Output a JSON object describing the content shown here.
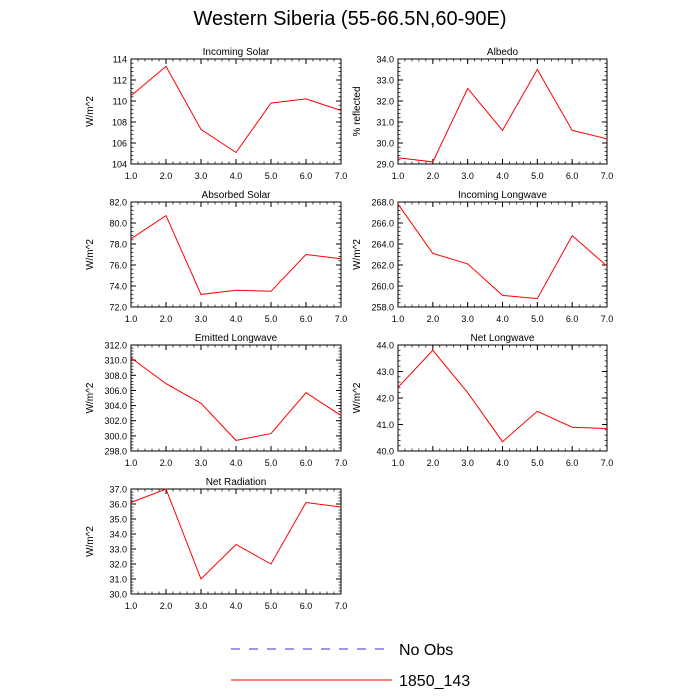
{
  "title": "Western Siberia (55-66.5N,60-90E)",
  "legend": {
    "placement": "bottom-center",
    "entries": [
      {
        "label": "No Obs",
        "color": "#3333cc",
        "style": "dashed"
      },
      {
        "label": "1850_143",
        "color": "#ff0000",
        "style": "solid"
      }
    ]
  },
  "chart_data": [
    {
      "type": "line",
      "title": "Incoming Solar",
      "xlabel": "",
      "ylabel": "W/m^2",
      "xlim": [
        1,
        7
      ],
      "ylim": [
        104,
        114
      ],
      "xticks": [
        1,
        2,
        3,
        4,
        5,
        6,
        7
      ],
      "xtick_labels": [
        "1.0",
        "2.0",
        "3.0",
        "4.0",
        "5.0",
        "6.0",
        "7.0"
      ],
      "yticks": [
        104,
        106,
        108,
        110,
        112,
        114
      ],
      "ytick_labels": [
        "104",
        "106",
        "108",
        "110",
        "112",
        "114"
      ],
      "series": [
        {
          "name": "1850_143",
          "color": "#ff0000",
          "x": [
            1,
            2,
            3,
            4,
            5,
            6,
            7
          ],
          "values": [
            110.5,
            113.3,
            107.3,
            105.1,
            109.8,
            110.2,
            109.1
          ]
        }
      ]
    },
    {
      "type": "line",
      "title": "Albedo",
      "xlabel": "",
      "ylabel": "% reflected",
      "xlim": [
        1,
        7
      ],
      "ylim": [
        29,
        34
      ],
      "xticks": [
        1,
        2,
        3,
        4,
        5,
        6,
        7
      ],
      "xtick_labels": [
        "1.0",
        "2.0",
        "3.0",
        "4.0",
        "5.0",
        "6.0",
        "7.0"
      ],
      "yticks": [
        29,
        30,
        31,
        32,
        33,
        34
      ],
      "ytick_labels": [
        "29.0",
        "30.0",
        "31.0",
        "32.0",
        "33.0",
        "34.0"
      ],
      "series": [
        {
          "name": "1850_143",
          "color": "#ff0000",
          "x": [
            1,
            2,
            3,
            4,
            5,
            6,
            7
          ],
          "values": [
            29.3,
            29.1,
            32.6,
            30.6,
            33.5,
            30.6,
            30.2
          ]
        }
      ]
    },
    {
      "type": "line",
      "title": "Absorbed Solar",
      "xlabel": "",
      "ylabel": "W/m^2",
      "xlim": [
        1,
        7
      ],
      "ylim": [
        72,
        82
      ],
      "xticks": [
        1,
        2,
        3,
        4,
        5,
        6,
        7
      ],
      "xtick_labels": [
        "1.0",
        "2.0",
        "3.0",
        "4.0",
        "5.0",
        "6.0",
        "7.0"
      ],
      "yticks": [
        72,
        74,
        76,
        78,
        80,
        82
      ],
      "ytick_labels": [
        "72.0",
        "74.0",
        "76.0",
        "78.0",
        "80.0",
        "82.0"
      ],
      "series": [
        {
          "name": "1850_143",
          "color": "#ff0000",
          "x": [
            1,
            2,
            3,
            4,
            5,
            6,
            7
          ],
          "values": [
            78.5,
            80.7,
            73.2,
            73.6,
            73.5,
            77.0,
            76.6
          ]
        }
      ]
    },
    {
      "type": "line",
      "title": "Incoming Longwave",
      "xlabel": "",
      "ylabel": "W/m^2",
      "xlim": [
        1,
        7
      ],
      "ylim": [
        258,
        268
      ],
      "xticks": [
        1,
        2,
        3,
        4,
        5,
        6,
        7
      ],
      "xtick_labels": [
        "1.0",
        "2.0",
        "3.0",
        "4.0",
        "5.0",
        "6.0",
        "7.0"
      ],
      "yticks": [
        258,
        260,
        262,
        264,
        266,
        268
      ],
      "ytick_labels": [
        "258.0",
        "260.0",
        "262.0",
        "264.0",
        "266.0",
        "268.0"
      ],
      "series": [
        {
          "name": "1850_143",
          "color": "#ff0000",
          "x": [
            1,
            2,
            3,
            4,
            5,
            6,
            7
          ],
          "values": [
            267.8,
            263.1,
            262.1,
            259.1,
            258.8,
            264.8,
            261.9
          ]
        }
      ]
    },
    {
      "type": "line",
      "title": "Emitted Longwave",
      "xlabel": "",
      "ylabel": "W/m^2",
      "xlim": [
        1,
        7
      ],
      "ylim": [
        298,
        312
      ],
      "xticks": [
        1,
        2,
        3,
        4,
        5,
        6,
        7
      ],
      "xtick_labels": [
        "1.0",
        "2.0",
        "3.0",
        "4.0",
        "5.0",
        "6.0",
        "7.0"
      ],
      "yticks": [
        298,
        300,
        302,
        304,
        306,
        308,
        310,
        312
      ],
      "ytick_labels": [
        "298.0",
        "300.0",
        "302.0",
        "304.0",
        "306.0",
        "308.0",
        "310.0",
        "312.0"
      ],
      "series": [
        {
          "name": "1850_143",
          "color": "#ff0000",
          "x": [
            1,
            2,
            3,
            4,
            5,
            6,
            7
          ],
          "values": [
            310.3,
            306.9,
            304.3,
            299.4,
            300.3,
            305.7,
            302.7
          ]
        }
      ]
    },
    {
      "type": "line",
      "title": "Net Longwave",
      "xlabel": "",
      "ylabel": "W/m^2",
      "xlim": [
        1,
        7
      ],
      "ylim": [
        40,
        44
      ],
      "xticks": [
        1,
        2,
        3,
        4,
        5,
        6,
        7
      ],
      "xtick_labels": [
        "1.0",
        "2.0",
        "3.0",
        "4.0",
        "5.0",
        "6.0",
        "7.0"
      ],
      "yticks": [
        40,
        41,
        42,
        43,
        44
      ],
      "ytick_labels": [
        "40.0",
        "41.0",
        "42.0",
        "43.0",
        "44.0"
      ],
      "series": [
        {
          "name": "1850_143",
          "color": "#ff0000",
          "x": [
            1,
            2,
            3,
            4,
            5,
            6,
            7
          ],
          "values": [
            42.4,
            43.8,
            42.2,
            40.35,
            41.5,
            40.9,
            40.85
          ]
        }
      ]
    },
    {
      "type": "line",
      "title": "Net Radiation",
      "xlabel": "",
      "ylabel": "W/m^2",
      "xlim": [
        1,
        7
      ],
      "ylim": [
        30,
        37
      ],
      "xticks": [
        1,
        2,
        3,
        4,
        5,
        6,
        7
      ],
      "xtick_labels": [
        "1.0",
        "2.0",
        "3.0",
        "4.0",
        "5.0",
        "6.0",
        "7.0"
      ],
      "yticks": [
        30,
        31,
        32,
        33,
        34,
        35,
        36,
        37
      ],
      "ytick_labels": [
        "30.0",
        "31.0",
        "32.0",
        "33.0",
        "34.0",
        "35.0",
        "36.0",
        "37.0"
      ],
      "series": [
        {
          "name": "1850_143",
          "color": "#ff0000",
          "x": [
            1,
            2,
            3,
            4,
            5,
            6,
            7
          ],
          "values": [
            36.1,
            37.0,
            31.0,
            33.3,
            32.0,
            36.1,
            35.8
          ]
        }
      ]
    }
  ]
}
